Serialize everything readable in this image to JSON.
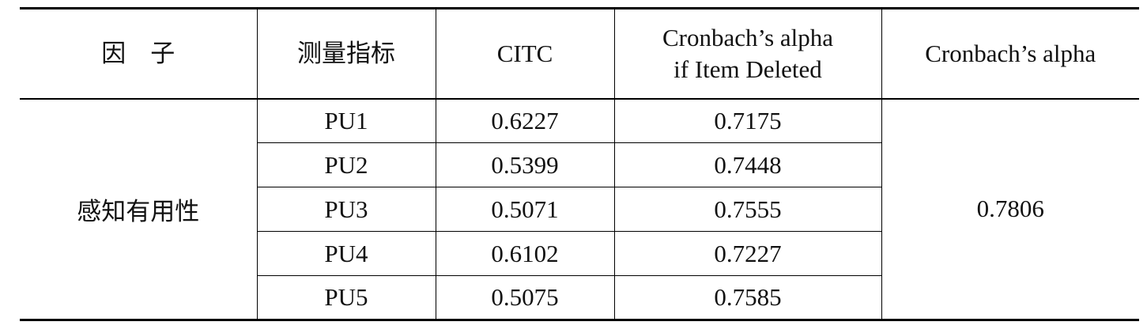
{
  "table": {
    "headers": [
      "因　子",
      "测量指标",
      "CITC",
      [
        "Cronbach’s alpha",
        "if Item Deleted"
      ],
      "Cronbach’s alpha"
    ],
    "groups": [
      {
        "factor": "感知有用性",
        "alpha": "0.7806",
        "rows": [
          [
            "PU1",
            "0.6227",
            "0.7175"
          ],
          [
            "PU2",
            "0.5399",
            "0.7448"
          ],
          [
            "PU3",
            "0.5071",
            "0.7555"
          ],
          [
            "PU4",
            "0.6102",
            "0.7227"
          ],
          [
            "PU5",
            "0.5075",
            "0.7585"
          ]
        ]
      }
    ]
  }
}
